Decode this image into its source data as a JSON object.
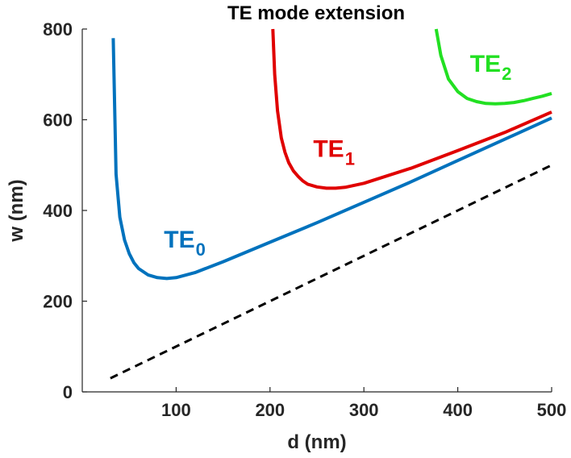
{
  "chart_data": {
    "type": "line",
    "title": "TE mode extension",
    "xlabel": "d (nm)",
    "ylabel": "w (nm)",
    "xlim": [
      0,
      500
    ],
    "ylim": [
      0,
      800
    ],
    "xticks": [
      100,
      200,
      300,
      400,
      500
    ],
    "yticks": [
      0,
      200,
      400,
      600,
      800
    ],
    "grid": false,
    "series": [
      {
        "label_main": "TE",
        "label_sub": "0",
        "color": "#0072BD",
        "x": [
          33,
          36,
          40,
          45,
          50,
          55,
          60,
          70,
          80,
          90,
          100,
          120,
          150,
          200,
          250,
          300,
          350,
          400,
          450,
          500
        ],
        "y": [
          780,
          480,
          385,
          335,
          305,
          285,
          272,
          258,
          252,
          250,
          252,
          263,
          287,
          330,
          373,
          418,
          463,
          510,
          557,
          604
        ]
      },
      {
        "label_main": "TE",
        "label_sub": "1",
        "color": "#E00000",
        "x": [
          203,
          205,
          208,
          212,
          216,
          220,
          225,
          230,
          235,
          240,
          250,
          260,
          270,
          280,
          300,
          350,
          400,
          450,
          500
        ],
        "y": [
          800,
          700,
          620,
          560,
          528,
          505,
          487,
          475,
          465,
          458,
          452,
          449,
          449,
          451,
          460,
          493,
          532,
          572,
          617
        ]
      },
      {
        "label_main": "TE",
        "label_sub": "2",
        "color": "#22E022",
        "x": [
          377,
          382,
          390,
          400,
          410,
          420,
          430,
          440,
          450,
          460,
          470,
          480,
          490,
          500
        ],
        "y": [
          800,
          742,
          690,
          662,
          647,
          640,
          636,
          635,
          636,
          638,
          642,
          647,
          652,
          658
        ]
      },
      {
        "label_main": "",
        "label_sub": "",
        "color": "#000000",
        "dashed": true,
        "x": [
          30,
          500
        ],
        "y": [
          30,
          500
        ]
      }
    ],
    "annotations": [
      {
        "series": 0,
        "x": 87,
        "y": 318
      },
      {
        "series": 1,
        "x": 246,
        "y": 518
      },
      {
        "series": 2,
        "x": 413,
        "y": 706
      }
    ]
  }
}
